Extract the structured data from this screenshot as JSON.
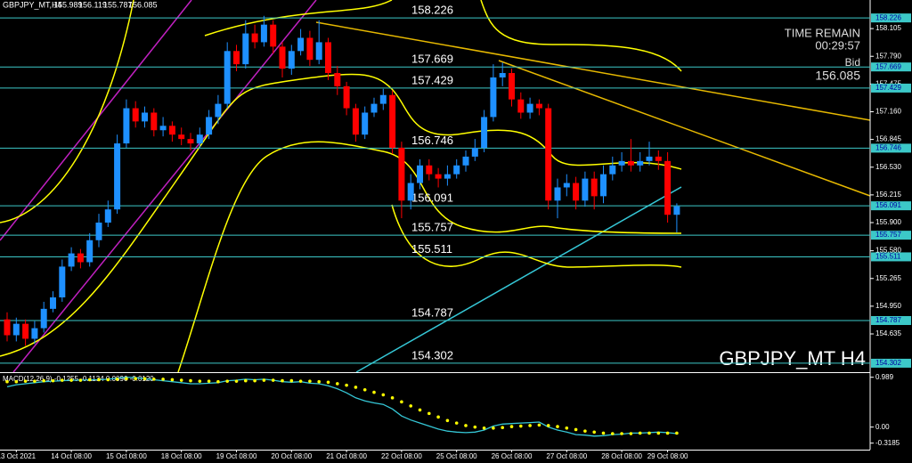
{
  "chart_data": [
    {
      "type": "candlestick",
      "symbol_label": "GBPJPY_MT,H4",
      "time_remain_label": "TIME REMAIN",
      "time_remain": "00:29:57",
      "bid_label": "Bid",
      "watermark": "GBPJPY_MT H4",
      "x": [
        null,
        "13 Oct 2021",
        null,
        null,
        null,
        null,
        null,
        "14 Oct 08:00",
        null,
        null,
        null,
        null,
        null,
        "15 Oct 08:00",
        null,
        null,
        null,
        null,
        null,
        "18 Oct 08:00",
        null,
        null,
        null,
        null,
        null,
        "19 Oct 08:00",
        null,
        null,
        null,
        null,
        null,
        "20 Oct 08:00",
        null,
        null,
        null,
        null,
        null,
        "21 Oct 08:00",
        null,
        null,
        null,
        null,
        null,
        "22 Oct 08:00",
        null,
        null,
        null,
        null,
        null,
        "25 Oct 08:00",
        null,
        null,
        null,
        null,
        null,
        "26 Oct 08:00",
        null,
        null,
        null,
        null,
        null,
        "27 Oct 08:00",
        null,
        null,
        null,
        null,
        null,
        "28 Oct 08:00",
        null,
        null,
        null,
        null,
        "29 Oct 08:00",
        null
      ],
      "open": [
        154.8,
        154.62,
        154.75,
        154.58,
        154.7,
        154.92,
        155.05,
        155.4,
        155.55,
        155.45,
        155.7,
        155.9,
        156.05,
        156.8,
        157.2,
        157.05,
        157.15,
        156.95,
        157.0,
        156.9,
        156.85,
        156.8,
        156.9,
        157.1,
        157.25,
        157.85,
        157.7,
        158.05,
        157.95,
        158.15,
        157.9,
        157.65,
        157.85,
        158.0,
        157.75,
        157.95,
        157.6,
        157.45,
        157.2,
        156.9,
        157.15,
        157.25,
        157.35,
        156.75,
        156.15,
        156.35,
        156.55,
        156.45,
        156.4,
        156.45,
        156.55,
        156.65,
        156.75,
        157.1,
        157.55,
        157.6,
        157.3,
        157.15,
        157.25,
        157.2,
        156.15,
        156.3,
        156.35,
        156.15,
        156.4,
        156.2,
        156.45,
        156.55,
        156.6,
        156.55,
        156.6,
        156.65,
        156.6,
        155.989
      ],
      "high": [
        154.88,
        154.82,
        154.8,
        154.78,
        155.0,
        155.12,
        155.48,
        155.62,
        155.6,
        155.78,
        156.0,
        156.15,
        156.9,
        157.3,
        157.28,
        157.22,
        157.2,
        157.1,
        157.05,
        156.98,
        156.92,
        156.98,
        157.18,
        157.35,
        157.95,
        157.92,
        158.2,
        158.15,
        158.25,
        158.2,
        157.95,
        157.92,
        158.1,
        158.08,
        158.2,
        158.0,
        157.68,
        157.5,
        157.25,
        157.22,
        157.32,
        157.42,
        157.4,
        156.82,
        156.45,
        156.62,
        156.62,
        156.52,
        156.55,
        156.62,
        156.72,
        156.85,
        157.18,
        157.7,
        157.72,
        157.65,
        157.38,
        157.32,
        157.3,
        157.25,
        156.4,
        156.45,
        156.42,
        156.48,
        156.48,
        156.55,
        156.65,
        156.7,
        156.85,
        156.7,
        156.82,
        156.72,
        156.7,
        156.119
      ],
      "low": [
        154.55,
        154.55,
        154.5,
        154.52,
        154.65,
        154.88,
        155.0,
        155.35,
        155.38,
        155.4,
        155.62,
        155.85,
        156.0,
        156.75,
        156.98,
        156.98,
        156.88,
        156.88,
        156.82,
        156.78,
        156.72,
        156.75,
        156.85,
        157.02,
        157.2,
        157.62,
        157.65,
        157.88,
        157.9,
        157.82,
        157.55,
        157.58,
        157.8,
        157.68,
        157.7,
        157.52,
        157.35,
        157.12,
        156.82,
        156.85,
        157.1,
        157.18,
        156.68,
        155.95,
        156.05,
        156.28,
        156.38,
        156.3,
        156.32,
        156.4,
        156.48,
        156.6,
        156.7,
        157.05,
        157.45,
        157.22,
        157.08,
        157.08,
        157.12,
        156.05,
        155.95,
        156.2,
        156.05,
        156.08,
        156.05,
        156.12,
        156.38,
        156.48,
        156.48,
        156.48,
        156.55,
        156.5,
        155.9,
        155.787
      ],
      "close": [
        154.62,
        154.75,
        154.58,
        154.7,
        154.92,
        155.05,
        155.4,
        155.55,
        155.45,
        155.7,
        155.9,
        156.05,
        156.8,
        157.2,
        157.05,
        157.15,
        156.95,
        157.0,
        156.9,
        156.85,
        156.8,
        156.9,
        157.1,
        157.25,
        157.85,
        157.7,
        158.05,
        157.95,
        158.15,
        157.9,
        157.65,
        157.85,
        158.0,
        157.75,
        157.95,
        157.6,
        157.45,
        157.2,
        156.9,
        157.15,
        157.25,
        157.35,
        156.75,
        156.15,
        156.35,
        156.55,
        156.45,
        156.4,
        156.45,
        156.55,
        156.65,
        156.75,
        157.1,
        157.55,
        157.6,
        157.3,
        157.15,
        157.25,
        157.2,
        156.15,
        156.3,
        156.35,
        156.15,
        156.4,
        156.2,
        156.45,
        156.55,
        156.6,
        156.55,
        156.6,
        156.65,
        156.6,
        155.989,
        156.085
      ],
      "up_color": "#1e90ff",
      "down_color": "#ff0000",
      "levels": [
        158.226,
        157.669,
        157.429,
        156.746,
        156.091,
        155.757,
        155.511,
        154.787,
        154.302
      ],
      "level_color": "#3cc8c8",
      "ylim": [
        154.2,
        158.43
      ],
      "yticks": [
        158.105,
        {
          "value": 157.79,
          "label": "157.790"
        },
        157.475,
        {
          "value": 157.16,
          "label": "157.160"
        },
        156.845,
        {
          "value": 156.53,
          "label": "156.530"
        },
        156.215,
        {
          "value": 155.9,
          "label": "155.900"
        },
        {
          "value": 155.58,
          "label": "155.580"
        },
        155.265,
        {
          "value": 154.95,
          "label": "154.950"
        },
        154.635
      ]
    },
    {
      "type": "line",
      "title": "MACD(12,26,9) -0.1255 -0.1134 0.0096 -0.0120",
      "series": [
        {
          "color": "#35c7d6",
          "values": [
            0.8,
            0.84,
            0.86,
            0.88,
            0.9,
            0.91,
            0.92,
            0.93,
            0.93,
            0.94,
            0.94,
            0.95,
            0.97,
            0.99,
            0.98,
            0.96,
            0.94,
            0.92,
            0.9,
            0.88,
            0.86,
            0.86,
            0.87,
            0.88,
            0.92,
            0.93,
            0.95,
            0.94,
            0.95,
            0.93,
            0.9,
            0.89,
            0.9,
            0.87,
            0.86,
            0.82,
            0.76,
            0.68,
            0.58,
            0.52,
            0.48,
            0.45,
            0.36,
            0.22,
            0.14,
            0.08,
            0.02,
            -0.04,
            -0.08,
            -0.1,
            -0.11,
            -0.1,
            -0.06,
            0.02,
            0.06,
            0.07,
            0.08,
            0.09,
            0.1,
            0.0,
            -0.06,
            -0.1,
            -0.15,
            -0.16,
            -0.18,
            -0.17,
            -0.15,
            -0.14,
            -0.12,
            -0.12,
            -0.11,
            -0.1,
            -0.11,
            -0.13
          ]
        },
        {
          "color": "#ffff00",
          "style": "dots",
          "values": [
            0.9,
            0.9,
            0.91,
            0.91,
            0.92,
            0.92,
            0.93,
            0.93,
            0.93,
            0.94,
            0.94,
            0.94,
            0.95,
            0.96,
            0.96,
            0.96,
            0.95,
            0.95,
            0.94,
            0.93,
            0.92,
            0.91,
            0.91,
            0.9,
            0.91,
            0.91,
            0.92,
            0.92,
            0.93,
            0.93,
            0.92,
            0.92,
            0.91,
            0.91,
            0.9,
            0.89,
            0.86,
            0.83,
            0.79,
            0.74,
            0.69,
            0.64,
            0.58,
            0.5,
            0.42,
            0.34,
            0.27,
            0.2,
            0.13,
            0.08,
            0.03,
            0.0,
            -0.02,
            -0.02,
            -0.01,
            0.01,
            0.02,
            0.03,
            0.04,
            0.03,
            0.01,
            -0.02,
            -0.05,
            -0.08,
            -0.1,
            -0.12,
            -0.13,
            -0.13,
            -0.13,
            -0.12,
            -0.12,
            -0.12,
            -0.12,
            -0.12
          ]
        }
      ],
      "ylim": [
        -0.448,
        1.054
      ],
      "yticks": [
        0.989,
        {
          "value": 0,
          "label": "0.00"
        },
        -0.3185
      ]
    }
  ]
}
